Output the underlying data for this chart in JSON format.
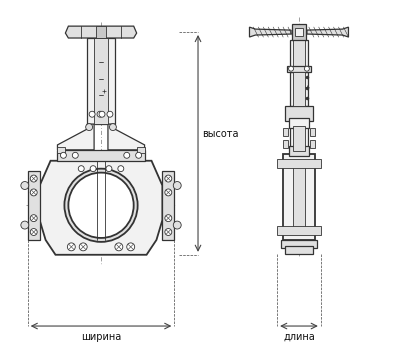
{
  "background_color": "#ffffff",
  "line_color": "#333333",
  "dim_line_color": "#444444",
  "label_color": "#111111",
  "label_vysota": "высота",
  "label_shirina": "ширина",
  "label_dlina": "длина",
  "fig_width": 4.0,
  "fig_height": 3.46,
  "dpi": 100,
  "hatch_color": "#555555",
  "fill_light": "#f2f2f2",
  "fill_mid": "#e0e0e0",
  "fill_dark": "#c8c8c8"
}
